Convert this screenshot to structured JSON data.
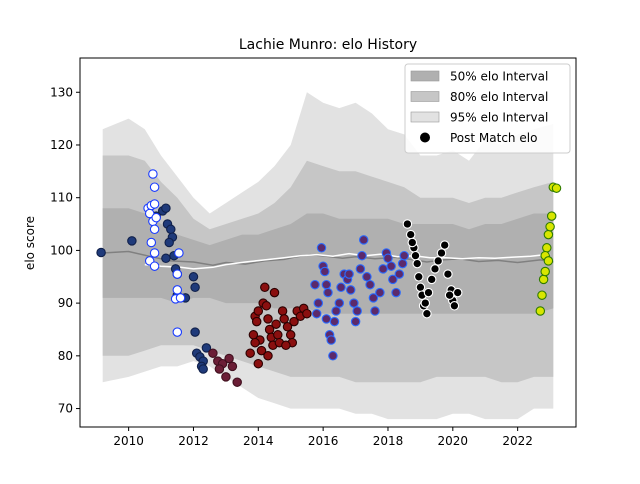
{
  "chart_data": {
    "type": "scatter",
    "title": "Lachie Munro: elo History",
    "xlabel": "",
    "ylabel": "elo score",
    "xlim": [
      2008.5,
      2023.8
    ],
    "ylim": [
      66.5,
      136.5
    ],
    "xticks": [
      2010,
      2012,
      2014,
      2016,
      2018,
      2020,
      2022
    ],
    "yticks": [
      70,
      80,
      90,
      100,
      110,
      120,
      130
    ],
    "grid": false,
    "legend_position": "top-right",
    "legend": [
      {
        "label": "50% elo Interval",
        "kind": "patch",
        "color": "#b0b0b0"
      },
      {
        "label": "80% elo Interval",
        "kind": "patch",
        "color": "#c6c6c6"
      },
      {
        "label": "95% elo Interval",
        "kind": "patch",
        "color": "#e2e2e2"
      },
      {
        "label": "Post Match elo",
        "kind": "marker",
        "color": "#000000"
      }
    ],
    "intervals": {
      "x": [
        2009.2,
        2010.0,
        2010.5,
        2011.0,
        2011.5,
        2012.0,
        2012.5,
        2013.0,
        2013.5,
        2014.0,
        2014.5,
        2015.0,
        2015.5,
        2016.0,
        2016.5,
        2017.0,
        2017.5,
        2018.0,
        2018.5,
        2019.0,
        2019.5,
        2020.0,
        2020.5,
        2021.0,
        2021.5,
        2022.0,
        2022.5,
        2023.1
      ],
      "p95_upper": [
        123,
        125,
        123,
        118,
        114,
        110,
        107,
        109,
        111,
        113,
        116,
        120,
        130,
        128,
        127,
        128,
        126,
        123,
        122,
        118,
        118,
        119,
        117,
        121,
        120,
        122,
        123,
        124
      ],
      "p80_upper": [
        118,
        118,
        117,
        113,
        110,
        106,
        104,
        105,
        106,
        107,
        109,
        112,
        117,
        116,
        115,
        115,
        114,
        113,
        112,
        110,
        110,
        110,
        109,
        110,
        110,
        111,
        112,
        113
      ],
      "p50_upper": [
        108,
        108,
        107,
        105,
        103,
        102,
        101,
        102,
        103,
        103,
        104,
        105,
        107,
        107,
        106,
        106,
        106,
        106,
        105,
        105,
        105,
        105,
        104,
        105,
        105,
        106,
        107,
        107
      ],
      "center": [
        99.5,
        99.8,
        99.6,
        98.5,
        98.0,
        97.8,
        97.5,
        97.8,
        98.0,
        98.3,
        98.5,
        98.8,
        99.0,
        98.7,
        98.5,
        98.6,
        98.5,
        98.4,
        98.3,
        98.0,
        98.2,
        98.3,
        98.0,
        98.2,
        98.1,
        97.9,
        98.0,
        98.0
      ],
      "p50_lower": [
        91,
        91,
        91,
        91,
        90,
        91,
        91,
        90,
        90,
        90,
        89,
        89,
        89,
        88,
        88,
        88,
        88,
        88,
        88,
        88,
        88,
        88,
        88,
        88,
        88,
        88,
        88,
        89
      ],
      "p80_lower": [
        80,
        80,
        81,
        82,
        82,
        82,
        81,
        80,
        79,
        78,
        77,
        76,
        76,
        76,
        76,
        75,
        75,
        75,
        75,
        75,
        76,
        76,
        76,
        76,
        75,
        75,
        76,
        76
      ],
      "p95_lower": [
        75,
        76,
        77,
        78,
        78,
        79,
        78,
        76,
        74,
        72,
        71,
        70,
        70,
        70,
        70,
        69,
        69,
        68,
        68,
        68,
        68,
        69,
        69,
        68,
        68,
        68,
        70,
        70
      ]
    },
    "lines": [
      {
        "color": "#808080",
        "x": [
          2009.2,
          2010.0,
          2010.7,
          2011.3,
          2012.0,
          2012.6,
          2013.0,
          2013.6,
          2014.2,
          2014.8,
          2015.2,
          2015.6,
          2016.1,
          2016.6,
          2017.0,
          2017.6,
          2018.2,
          2018.7,
          2019.2,
          2019.7,
          2020.2,
          2020.8,
          2021.4,
          2022.0,
          2022.7,
          2023.1
        ],
        "y": [
          99.5,
          99.8,
          98.8,
          98.0,
          97.8,
          97.2,
          97.7,
          97.4,
          98.0,
          98.3,
          98.8,
          99.2,
          98.9,
          98.5,
          98.8,
          98.4,
          98.7,
          98.3,
          97.8,
          98.2,
          98.4,
          97.9,
          98.1,
          97.7,
          98.2,
          97.8
        ]
      },
      {
        "color": "#ffffff",
        "x": [
          2010.5,
          2011.0,
          2011.6,
          2012.0,
          2012.6,
          2013.0,
          2013.6,
          2014.2,
          2014.8,
          2015.3,
          2015.8,
          2016.3,
          2016.8,
          2017.3,
          2017.8,
          2018.3,
          2018.8,
          2019.3,
          2019.8,
          2020.3,
          2020.8,
          2021.3,
          2021.8,
          2022.4,
          2023.0
        ],
        "y": [
          97.3,
          97.0,
          96.8,
          96.5,
          96.8,
          97.3,
          97.8,
          98.2,
          98.6,
          99.0,
          99.2,
          98.9,
          99.4,
          99.0,
          99.3,
          98.8,
          99.0,
          98.6,
          98.6,
          98.4,
          98.6,
          98.5,
          98.7,
          98.9,
          99.3
        ]
      }
    ],
    "series": [
      {
        "face": "#1f3a7a",
        "edge": "#10204a",
        "points": [
          [
            2009.15,
            99.6
          ],
          [
            2010.1,
            101.8
          ],
          [
            2010.85,
            106.5
          ],
          [
            2011.05,
            107.5
          ],
          [
            2011.15,
            108.0
          ],
          [
            2011.2,
            105.0
          ],
          [
            2011.3,
            104.0
          ],
          [
            2011.35,
            102.5
          ],
          [
            2011.25,
            101.5
          ],
          [
            2011.4,
            99.0
          ],
          [
            2011.15,
            98.5
          ],
          [
            2011.45,
            96.5
          ],
          [
            2011.5,
            95.5
          ],
          [
            2012.0,
            95.0
          ],
          [
            2012.05,
            93.0
          ],
          [
            2011.5,
            91.5
          ],
          [
            2011.75,
            91.0
          ],
          [
            2012.05,
            84.5
          ],
          [
            2012.1,
            80.5
          ],
          [
            2012.2,
            79.8
          ],
          [
            2012.3,
            79.0
          ],
          [
            2012.4,
            81.5
          ],
          [
            2012.25,
            78.0
          ],
          [
            2012.3,
            77.5
          ]
        ]
      },
      {
        "face": "#ffffff",
        "edge": "#1a3cff",
        "points": [
          [
            2010.75,
            114.5
          ],
          [
            2010.8,
            112.0
          ],
          [
            2010.6,
            108.0
          ],
          [
            2010.7,
            108.5
          ],
          [
            2010.8,
            108.8
          ],
          [
            2010.65,
            107.0
          ],
          [
            2010.75,
            105.5
          ],
          [
            2010.85,
            106.2
          ],
          [
            2010.8,
            104.0
          ],
          [
            2010.7,
            101.5
          ],
          [
            2010.8,
            99.5
          ],
          [
            2010.65,
            98.0
          ],
          [
            2010.8,
            97.0
          ],
          [
            2011.55,
            99.5
          ],
          [
            2011.5,
            95.5
          ],
          [
            2011.5,
            92.5
          ],
          [
            2011.45,
            90.8
          ],
          [
            2011.6,
            91.0
          ],
          [
            2011.5,
            84.5
          ]
        ]
      },
      {
        "face": "#6b1e36",
        "edge": "#40101e",
        "points": [
          [
            2012.6,
            80.5
          ],
          [
            2012.75,
            79.0
          ],
          [
            2012.9,
            78.5
          ],
          [
            2013.1,
            79.5
          ],
          [
            2013.2,
            78.0
          ],
          [
            2013.0,
            76.0
          ],
          [
            2013.35,
            75.0
          ],
          [
            2012.8,
            77.5
          ]
        ]
      },
      {
        "face": "#8a0f0f",
        "edge": "#2a0000",
        "points": [
          [
            2013.75,
            80.5
          ],
          [
            2013.85,
            84.0
          ],
          [
            2013.9,
            87.5
          ],
          [
            2014.0,
            88.5
          ],
          [
            2013.95,
            86.5
          ],
          [
            2014.05,
            83.0
          ],
          [
            2014.1,
            81.0
          ],
          [
            2013.9,
            82.5
          ],
          [
            2014.15,
            90.0
          ],
          [
            2014.2,
            93.0
          ],
          [
            2014.25,
            89.5
          ],
          [
            2014.3,
            87.0
          ],
          [
            2014.35,
            85.0
          ],
          [
            2014.4,
            83.5
          ],
          [
            2014.45,
            82.0
          ],
          [
            2014.3,
            80.0
          ],
          [
            2014.0,
            78.5
          ],
          [
            2014.55,
            86.0
          ],
          [
            2014.6,
            84.0
          ],
          [
            2014.65,
            82.5
          ],
          [
            2014.75,
            88.5
          ],
          [
            2014.8,
            87.0
          ],
          [
            2014.9,
            85.5
          ],
          [
            2015.0,
            84.0
          ],
          [
            2015.05,
            82.5
          ],
          [
            2015.1,
            86.5
          ],
          [
            2015.2,
            88.5
          ],
          [
            2015.3,
            87.5
          ],
          [
            2015.4,
            89.0
          ],
          [
            2015.5,
            88.0
          ],
          [
            2014.5,
            92.0
          ],
          [
            2014.85,
            82.0
          ]
        ]
      },
      {
        "face": "#5c2a6b",
        "edge": "#2a6bff",
        "points": [
          [
            2015.75,
            93.5
          ],
          [
            2015.85,
            90.0
          ],
          [
            2015.95,
            100.5
          ],
          [
            2016.0,
            97.0
          ],
          [
            2016.05,
            96.0
          ],
          [
            2016.1,
            93.5
          ],
          [
            2016.15,
            92.0
          ],
          [
            2016.1,
            87.0
          ],
          [
            2016.2,
            84.0
          ],
          [
            2016.25,
            83.0
          ],
          [
            2016.3,
            80.0
          ],
          [
            2016.35,
            86.5
          ],
          [
            2016.4,
            88.5
          ],
          [
            2016.5,
            90.0
          ],
          [
            2016.55,
            93.0
          ],
          [
            2016.65,
            95.5
          ],
          [
            2016.75,
            94.5
          ],
          [
            2016.85,
            92.5
          ],
          [
            2016.95,
            90.0
          ],
          [
            2017.0,
            86.5
          ],
          [
            2017.05,
            88.5
          ],
          [
            2017.15,
            96.5
          ],
          [
            2017.2,
            99.0
          ],
          [
            2017.25,
            102.0
          ],
          [
            2017.35,
            95.0
          ],
          [
            2017.45,
            93.5
          ],
          [
            2017.55,
            91.0
          ],
          [
            2017.6,
            88.5
          ],
          [
            2017.75,
            92.0
          ],
          [
            2017.85,
            96.5
          ],
          [
            2017.95,
            99.5
          ],
          [
            2018.0,
            98.5
          ],
          [
            2018.1,
            97.0
          ],
          [
            2018.15,
            94.5
          ],
          [
            2018.25,
            92.0
          ],
          [
            2018.35,
            95.5
          ],
          [
            2018.45,
            97.5
          ],
          [
            2018.5,
            99.0
          ],
          [
            2015.8,
            88.0
          ],
          [
            2016.8,
            95.5
          ]
        ]
      },
      {
        "face": "#000000",
        "edge": "#ffffff",
        "points": [
          [
            2018.6,
            105.0
          ],
          [
            2018.7,
            103.0
          ],
          [
            2018.8,
            100.5
          ],
          [
            2018.85,
            99.0
          ],
          [
            2018.9,
            97.5
          ],
          [
            2018.95,
            95.0
          ],
          [
            2019.0,
            93.0
          ],
          [
            2019.05,
            91.5
          ],
          [
            2019.1,
            89.5
          ],
          [
            2019.2,
            88.0
          ],
          [
            2019.25,
            92.0
          ],
          [
            2019.35,
            94.5
          ],
          [
            2019.45,
            96.5
          ],
          [
            2019.55,
            98.0
          ],
          [
            2019.65,
            99.5
          ],
          [
            2019.75,
            101.0
          ],
          [
            2019.85,
            95.5
          ],
          [
            2019.95,
            92.5
          ],
          [
            2020.0,
            90.5
          ],
          [
            2020.05,
            89.5
          ],
          [
            2020.15,
            92.0
          ],
          [
            2018.75,
            101.5
          ],
          [
            2019.15,
            90.0
          ],
          [
            2019.9,
            91.5
          ]
        ]
      },
      {
        "face": "#d8e600",
        "edge": "#2f7a00",
        "points": [
          [
            2022.7,
            88.5
          ],
          [
            2022.75,
            91.5
          ],
          [
            2022.8,
            94.5
          ],
          [
            2022.85,
            96.0
          ],
          [
            2022.9,
            100.5
          ],
          [
            2022.95,
            103.0
          ],
          [
            2023.0,
            104.5
          ],
          [
            2023.05,
            106.5
          ],
          [
            2023.1,
            112.0
          ],
          [
            2023.2,
            111.8
          ],
          [
            2022.85,
            99.0
          ],
          [
            2022.95,
            98.0
          ]
        ]
      }
    ]
  }
}
